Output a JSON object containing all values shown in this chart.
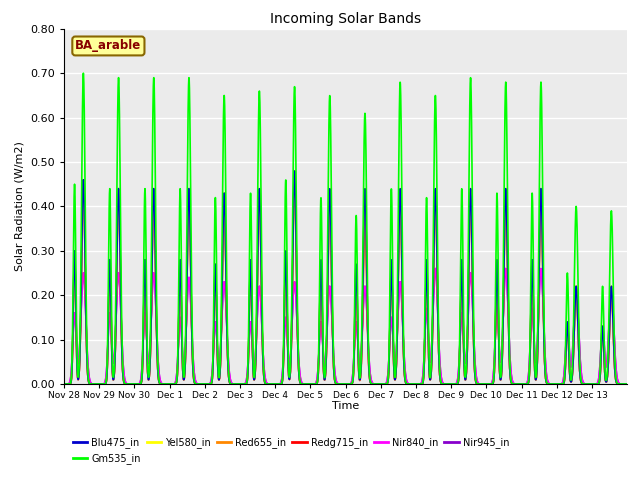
{
  "title": "Incoming Solar Bands",
  "xlabel": "Time",
  "ylabel": "Solar Radiation (W/m2)",
  "ylim": [
    0,
    0.8
  ],
  "yticks": [
    0.0,
    0.1,
    0.2,
    0.3,
    0.4,
    0.5,
    0.6,
    0.7,
    0.8
  ],
  "xtick_labels": [
    "Nov 28",
    "Nov 29",
    "Nov 30",
    "Dec 1",
    "Dec 2",
    "Dec 3",
    "Dec 4",
    "Dec 5",
    "Dec 6",
    "Dec 7",
    "Dec 8",
    "Dec 9",
    "Dec 10",
    "Dec 11",
    "Dec 12",
    "Dec 13"
  ],
  "legend_label": "BA_arable",
  "series": [
    {
      "name": "Blu475_in",
      "color": "#0000cc",
      "lw": 1.2
    },
    {
      "name": "Gm535_in",
      "color": "#00ff00",
      "lw": 1.2
    },
    {
      "name": "Yel580_in",
      "color": "#ffff00",
      "lw": 1.2
    },
    {
      "name": "Red655_in",
      "color": "#ff8800",
      "lw": 1.2
    },
    {
      "name": "Redg715_in",
      "color": "#ff0000",
      "lw": 1.2
    },
    {
      "name": "Nir840_in",
      "color": "#ff00ff",
      "lw": 1.2
    },
    {
      "name": "Nir945_in",
      "color": "#8800cc",
      "lw": 1.2
    }
  ],
  "n_days": 16,
  "background_color": "#ebebeb",
  "day_peaks_main": {
    "Gm535_in": [
      0.7,
      0.69,
      0.69,
      0.69,
      0.65,
      0.66,
      0.67,
      0.65,
      0.61,
      0.68,
      0.65,
      0.69,
      0.68,
      0.68,
      0.4,
      0.39
    ],
    "Yel580_in": [
      0.46,
      0.44,
      0.44,
      0.44,
      0.43,
      0.44,
      0.48,
      0.44,
      0.44,
      0.44,
      0.44,
      0.44,
      0.44,
      0.44,
      0.22,
      0.22
    ],
    "Red655_in": [
      0.46,
      0.44,
      0.44,
      0.44,
      0.43,
      0.44,
      0.48,
      0.44,
      0.44,
      0.44,
      0.44,
      0.44,
      0.44,
      0.44,
      0.22,
      0.22
    ],
    "Redg715_in": [
      0.45,
      0.43,
      0.43,
      0.43,
      0.42,
      0.43,
      0.47,
      0.41,
      0.37,
      0.43,
      0.43,
      0.43,
      0.43,
      0.43,
      0.22,
      0.21
    ],
    "Nir840_in": [
      0.25,
      0.25,
      0.25,
      0.24,
      0.23,
      0.22,
      0.23,
      0.22,
      0.22,
      0.23,
      0.26,
      0.25,
      0.26,
      0.26,
      0.21,
      0.21
    ],
    "Nir945_in": [
      0.25,
      0.25,
      0.25,
      0.24,
      0.23,
      0.22,
      0.23,
      0.22,
      0.22,
      0.23,
      0.26,
      0.25,
      0.26,
      0.26,
      0.21,
      0.21
    ],
    "Blu475_in": [
      0.46,
      0.44,
      0.44,
      0.44,
      0.43,
      0.44,
      0.48,
      0.44,
      0.44,
      0.44,
      0.44,
      0.44,
      0.44,
      0.44,
      0.22,
      0.22
    ]
  },
  "day_peaks_morning": {
    "Gm535_in": [
      0.45,
      0.44,
      0.44,
      0.44,
      0.42,
      0.43,
      0.46,
      0.42,
      0.38,
      0.44,
      0.42,
      0.44,
      0.43,
      0.43,
      0.25,
      0.22
    ],
    "Yel580_in": [
      0.3,
      0.28,
      0.28,
      0.28,
      0.27,
      0.28,
      0.3,
      0.28,
      0.27,
      0.28,
      0.28,
      0.28,
      0.28,
      0.28,
      0.14,
      0.13
    ],
    "Red655_in": [
      0.3,
      0.28,
      0.28,
      0.28,
      0.27,
      0.28,
      0.3,
      0.28,
      0.27,
      0.28,
      0.28,
      0.28,
      0.28,
      0.28,
      0.14,
      0.13
    ],
    "Redg715_in": [
      0.29,
      0.27,
      0.27,
      0.27,
      0.26,
      0.27,
      0.29,
      0.26,
      0.23,
      0.27,
      0.27,
      0.27,
      0.27,
      0.27,
      0.14,
      0.13
    ],
    "Nir840_in": [
      0.16,
      0.16,
      0.16,
      0.15,
      0.14,
      0.14,
      0.15,
      0.14,
      0.14,
      0.15,
      0.17,
      0.16,
      0.17,
      0.17,
      0.13,
      0.13
    ],
    "Nir945_in": [
      0.16,
      0.16,
      0.16,
      0.15,
      0.14,
      0.14,
      0.15,
      0.14,
      0.14,
      0.15,
      0.17,
      0.16,
      0.17,
      0.17,
      0.13,
      0.13
    ],
    "Blu475_in": [
      0.3,
      0.28,
      0.28,
      0.28,
      0.27,
      0.28,
      0.3,
      0.28,
      0.27,
      0.28,
      0.28,
      0.28,
      0.28,
      0.28,
      0.14,
      0.13
    ]
  }
}
